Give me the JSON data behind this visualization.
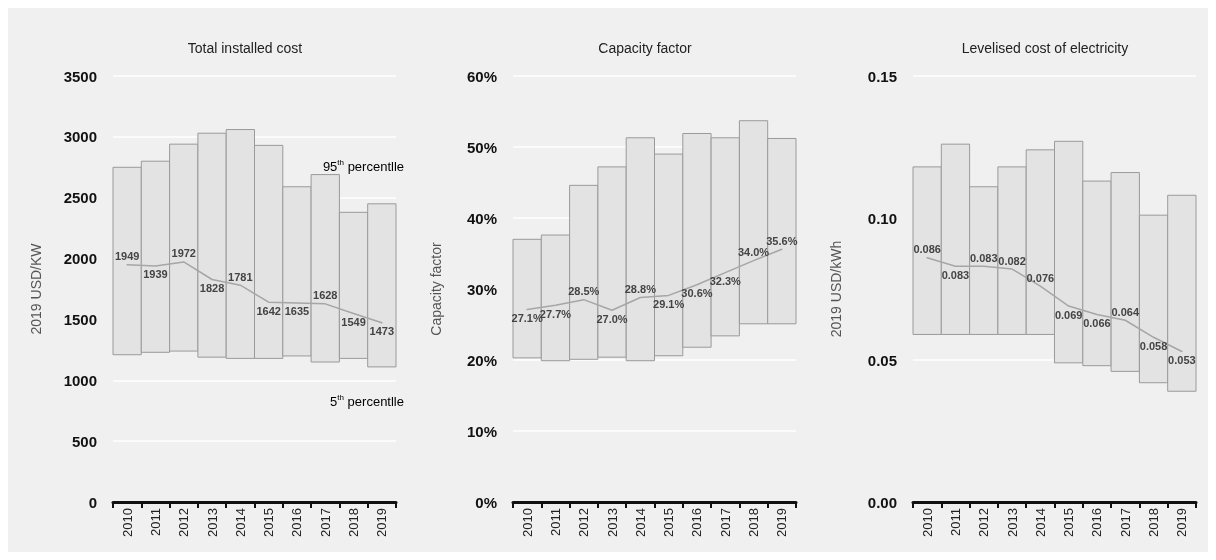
{
  "chart_data": [
    {
      "type": "bar",
      "title": "Total installed cost",
      "ylabel": "2019 USD/KW",
      "categories": [
        "2010",
        "2011",
        "2012",
        "2013",
        "2014",
        "2015",
        "2016",
        "2017",
        "2018",
        "2019"
      ],
      "series": [
        {
          "color": "#e3e3e3",
          "base": [
            1210,
            1230,
            1240,
            1190,
            1180,
            1180,
            1200,
            1150,
            1180,
            1110
          ],
          "values": [
            1540,
            1570,
            1700,
            1840,
            1880,
            1750,
            1390,
            1540,
            1200,
            1340
          ]
        },
        {
          "type": "line",
          "color": "#a6a6a6",
          "values": [
            1949,
            1939,
            1972,
            1828,
            1781,
            1642,
            1635,
            1628,
            1549,
            1473
          ],
          "value_labels": [
            "1949",
            "1939",
            "1972",
            "1828",
            "1781",
            "1642",
            "1635",
            "1628",
            "1549",
            "1473"
          ]
        }
      ],
      "annotations": [
        "95$^{th}$ percentlle",
        "5$^{th}$ percentlle"
      ],
      "ylim": [
        0,
        3500
      ],
      "yticks": [
        0,
        500,
        1000,
        1500,
        2000,
        2500,
        3000,
        3500
      ],
      "grid": "y",
      "marker": "none",
      "line_style": "solid"
    },
    {
      "type": "bar",
      "title": "Capacity factor",
      "ylabel": "Capacity factor",
      "categories": [
        "2010",
        "2011",
        "2012",
        "2013",
        "2014",
        "2015",
        "2016",
        "2017",
        "2018",
        "2019"
      ],
      "series": [
        {
          "color": "#e3e3e3",
          "base": [
            20.3,
            19.9,
            20.1,
            20.4,
            19.9,
            20.6,
            21.8,
            23.4,
            25.1,
            25.1
          ],
          "values": [
            16.7,
            17.7,
            24.5,
            26.8,
            31.4,
            28.4,
            30.1,
            27.9,
            28.6,
            26.1
          ]
        },
        {
          "type": "line",
          "color": "#a6a6a6",
          "values": [
            27.1,
            27.7,
            28.5,
            27.0,
            28.8,
            29.1,
            30.6,
            32.3,
            34.0,
            35.6
          ],
          "value_labels": [
            "27.1%",
            "27.7%",
            "28.5%",
            "27.0%",
            "28.8%",
            "29.1%",
            "30.6%",
            "32.3%",
            "34.0%",
            "35.6%"
          ]
        }
      ],
      "ylim": [
        0,
        60
      ],
      "yticks": [
        {
          "value": 0,
          "label": "0%"
        },
        {
          "value": 10,
          "label": "10%"
        },
        {
          "value": 20,
          "label": "20%"
        },
        {
          "value": 30,
          "label": "30%"
        },
        {
          "value": 40,
          "label": "40%"
        },
        {
          "value": 50,
          "label": "50%"
        },
        {
          "value": 60,
          "label": "60%"
        }
      ],
      "grid": "y",
      "marker": "none",
      "line_style": "solid"
    },
    {
      "type": "bar",
      "title": "Levelised cost of electricity",
      "ylabel": "2019 USD/kWh",
      "categories": [
        "2010",
        "2011",
        "2012",
        "2013",
        "2014",
        "2015",
        "2016",
        "2017",
        "2018",
        "2019"
      ],
      "series": [
        {
          "color": "#e3e3e3",
          "base": [
            0.059,
            0.059,
            0.059,
            0.059,
            0.059,
            0.049,
            0.048,
            0.046,
            0.042,
            0.039
          ],
          "values": [
            0.059,
            0.067,
            0.052,
            0.059,
            0.065,
            0.078,
            0.065,
            0.07,
            0.059,
            0.069
          ]
        },
        {
          "type": "line",
          "color": "#a6a6a6",
          "values": [
            0.086,
            0.083,
            0.083,
            0.082,
            0.076,
            0.069,
            0.066,
            0.064,
            0.058,
            0.053
          ],
          "value_labels": [
            "0.086",
            "0.083",
            "0.083",
            "0.082",
            "0.076",
            "0.069",
            "0.066",
            "0.064",
            "0.058",
            "0.053"
          ]
        }
      ],
      "ylim": [
        0,
        0.15
      ],
      "yticks": [
        {
          "value": 0,
          "label": "0.00"
        },
        {
          "value": 0.05,
          "label": "0.05"
        },
        {
          "value": 0.1,
          "label": "0.10"
        },
        {
          "value": 0.15,
          "label": "0.15"
        }
      ],
      "grid": "y",
      "marker": "none",
      "line_style": "solid"
    }
  ]
}
